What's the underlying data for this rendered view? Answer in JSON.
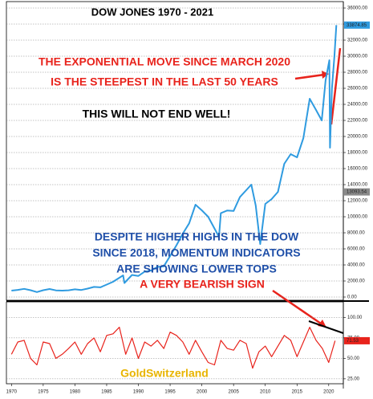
{
  "chart_data": [
    {
      "type": "line",
      "title": "DOW JONES   1970 - 2021",
      "annotations": [
        {
          "text": "THE EXPONENTIAL MOVE SINCE MARCH 2020",
          "color": "#e8231c"
        },
        {
          "text": "IS THE STEEPEST IN THE LAST 50 YEARS",
          "color": "#e8231c"
        },
        {
          "text": "THIS WILL NOT END WELL!",
          "color": "#000000"
        },
        {
          "text": "DESPITE HIGHER HIGHS IN THE DOW",
          "color": "#1f4fa8"
        },
        {
          "text": "SINCE 2018, MOMENTUM INDICATORS",
          "color": "#1f4fa8"
        },
        {
          "text": "ARE SHOWING LOWER TOPS",
          "color": "#1f4fa8"
        },
        {
          "text": "A VERY BEARISH SIGN",
          "color": "#e8231c"
        }
      ],
      "x": [
        1970,
        1971,
        1972,
        1973,
        1974,
        1975,
        1976,
        1977,
        1978,
        1979,
        1980,
        1981,
        1982,
        1983,
        1984,
        1985,
        1986,
        1987.6,
        1987.8,
        1989,
        1990,
        1991,
        1992,
        1993,
        1994,
        1995,
        1996,
        1997,
        1998,
        1999,
        2000,
        2001,
        2002.7,
        2003,
        2004,
        2005,
        2006,
        2007.8,
        2008.5,
        2009.2,
        2010,
        2011,
        2012,
        2013,
        2014,
        2015,
        2016,
        2017,
        2018,
        2018.9,
        2019.5,
        2020.1,
        2020.2,
        2020.5,
        2020.9,
        2021.2
      ],
      "series": [
        {
          "color": "#2f9be0",
          "values": [
            800,
            890,
            1020,
            850,
            620,
            850,
            1000,
            830,
            800,
            840,
            960,
            880,
            1050,
            1260,
            1210,
            1550,
            1900,
            2700,
            1750,
            2750,
            2630,
            3170,
            3300,
            3750,
            3830,
            5120,
            6450,
            7900,
            9180,
            11500,
            10800,
            10000,
            7500,
            10450,
            10780,
            10720,
            12460,
            14000,
            11400,
            6600,
            11600,
            12200,
            13100,
            16600,
            17800,
            17400,
            19800,
            24700,
            23300,
            22000,
            27000,
            29500,
            18600,
            26000,
            30000,
            33874.85
          ]
        }
      ],
      "xlim": [
        1969.2,
        2022.3
      ],
      "ylim": [
        -400,
        36800
      ],
      "yticks": [
        {
          "value": 0,
          "label": "0.00"
        },
        {
          "value": 2000,
          "label": "2000.00"
        },
        {
          "value": 4000,
          "label": "4000.00"
        },
        {
          "value": 6000,
          "label": "6000.00"
        },
        {
          "value": 8000,
          "label": "8000.00"
        },
        {
          "value": 10000,
          "label": "10000.00"
        },
        {
          "value": 12000,
          "label": "12000.00"
        },
        {
          "value": 14000,
          "label": "14000.00"
        },
        {
          "value": 16000,
          "label": "16000.00"
        },
        {
          "value": 18000,
          "label": "18000.00"
        },
        {
          "value": 20000,
          "label": "20000.00"
        },
        {
          "value": 22000,
          "label": "22000.00"
        },
        {
          "value": 24000,
          "label": "24000.00"
        },
        {
          "value": 26000,
          "label": "26000.00"
        },
        {
          "value": 28000,
          "label": "28000.00"
        },
        {
          "value": 30000,
          "label": "30000.00"
        },
        {
          "value": 32000,
          "label": "32000.00"
        },
        {
          "value": 34000,
          "label": "34000.00"
        },
        {
          "value": 36000,
          "label": "36000.00"
        }
      ],
      "markers": [
        {
          "value": 33874.85,
          "label": "33874.85",
          "color": "#2f9be0"
        },
        {
          "value": 13093.54,
          "label": "13093.54",
          "color": "#8a8a8a"
        }
      ],
      "grid": true
    },
    {
      "type": "line",
      "annotation": "GoldSwitzerland",
      "annotation_color": "#e8b400",
      "x": [
        1970,
        1971,
        1972,
        1973,
        1974,
        1975,
        1976,
        1977,
        1978,
        1979,
        1980,
        1981,
        1982,
        1983,
        1984,
        1985,
        1986,
        1987,
        1988,
        1989,
        1990,
        1991,
        1992,
        1993,
        1994,
        1995,
        1996,
        1997,
        1998,
        1999,
        2000,
        2001,
        2002,
        2003,
        2004,
        2005,
        2006,
        2007,
        2008,
        2009,
        2010,
        2011,
        2012,
        2013,
        2014,
        2015,
        2016,
        2017,
        2018,
        2019,
        2020,
        2021
      ],
      "series": [
        {
          "color": "#e8231c",
          "values": [
            55,
            70,
            72,
            50,
            42,
            70,
            68,
            50,
            55,
            62,
            70,
            55,
            68,
            75,
            58,
            78,
            80,
            88,
            55,
            75,
            50,
            70,
            65,
            72,
            62,
            82,
            78,
            70,
            55,
            72,
            58,
            45,
            42,
            72,
            62,
            60,
            72,
            68,
            38,
            58,
            65,
            52,
            65,
            78,
            72,
            52,
            70,
            88,
            72,
            62,
            45,
            71.53
          ]
        }
      ],
      "xlim": [
        1969.2,
        2022.3
      ],
      "ylim": [
        19,
        119
      ],
      "yticks": [
        {
          "value": 25,
          "label": "25.00"
        },
        {
          "value": 50,
          "label": "50.00"
        },
        {
          "value": 75,
          "label": "75.00"
        },
        {
          "value": 100,
          "label": "100.00"
        }
      ],
      "markers": [
        {
          "value": 71.53,
          "label": "71.53",
          "color": "#e8231c"
        }
      ],
      "xticks": [
        1970,
        1975,
        1980,
        1985,
        1990,
        1995,
        2000,
        2005,
        2010,
        2015,
        2020
      ],
      "grid": true
    }
  ]
}
